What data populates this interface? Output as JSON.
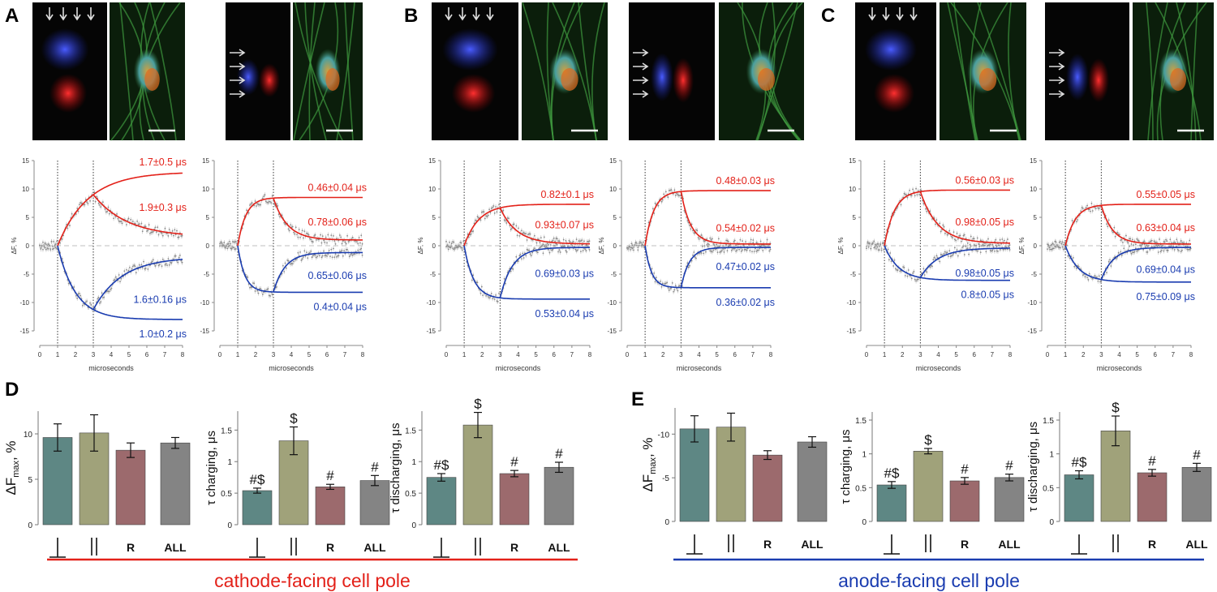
{
  "panels": {
    "A": {
      "letter": "A",
      "red_top": "1.7±0.5 μs",
      "red_bot": "1.9±0.3 μs",
      "blue_top": "1.6±0.16 μs",
      "blue_bot": "1.0±0.2 μs",
      "red2_top": "0.46±0.04 μs",
      "red2_bot": "0.78±0.06 μs",
      "blue2_top": "0.65±0.06 μs",
      "blue2_bot": "0.4±0.04 μs"
    },
    "B": {
      "letter": "B",
      "red_top": "0.82±0.1 μs",
      "red_bot": "0.93±0.07 μs",
      "blue_top": "0.69±0.03 μs",
      "blue_bot": "0.53±0.04 μs",
      "red2_top": "0.48±0.03 μs",
      "red2_bot": "0.54±0.02 μs",
      "blue2_top": "0.47±0.02 μs",
      "blue2_bot": "0.36±0.02 μs"
    },
    "C": {
      "letter": "C",
      "red_top": "0.56±0.03 μs",
      "red_bot": "0.98±0.05 μs",
      "blue_top": "0.98±0.05 μs",
      "blue_bot": "0.8±0.05 μs",
      "red2_top": "0.55±0.05 μs",
      "red2_bot": "0.63±0.04 μs",
      "blue2_top": "0.69±0.04 μs",
      "blue2_bot": "0.75±0.09 μs"
    }
  },
  "trace_axis": {
    "xlabel": "microseconds",
    "ylabel": "ΔF, %",
    "yticks": [
      "15",
      "10",
      "5",
      "0",
      "-5",
      "-10",
      "-15"
    ],
    "xticks": [
      "0",
      "1",
      "2",
      "3",
      "4",
      "5",
      "6",
      "7",
      "8"
    ]
  },
  "bar_labels": {
    "D": "D",
    "E": "E",
    "dfmax": "ΔF",
    "dfmax_sub": "max",
    "dfmax_unit": ", %",
    "tau_charging": "τ charging, μs",
    "tau_discharging": "τ discharging, μs",
    "cat_R": "R",
    "cat_ALL": "ALL",
    "cathode": "cathode-facing cell pole",
    "anode": "anode-facing cell pole"
  },
  "bar_ticks": {
    "D_dfmax": [
      "0",
      "5",
      "10"
    ],
    "E_dfmax": [
      "0",
      "-5",
      "-10"
    ],
    "tau": [
      "0",
      "0.5",
      "1",
      "1.5"
    ]
  },
  "colors": {
    "teal": "#5e8784",
    "olive": "#a0a27a",
    "mauve": "#9c6a6d",
    "gray": "#848484",
    "red": "#e32119",
    "blue": "#1a3cb0"
  },
  "chart_data": [
    {
      "type": "bar",
      "title": "D ΔFmax, %",
      "categories": [
        "⊥",
        "||",
        "R",
        "ALL"
      ],
      "values": [
        9.6,
        10.1,
        8.2,
        9.0
      ],
      "errors": [
        1.5,
        2.0,
        0.8,
        0.6
      ],
      "ylim": [
        0,
        12.5
      ],
      "marks": [
        "",
        "",
        "",
        ""
      ]
    },
    {
      "type": "bar",
      "title": "D τ charging, μs",
      "categories": [
        "⊥",
        "||",
        "R",
        "ALL"
      ],
      "values": [
        0.54,
        1.33,
        0.6,
        0.7
      ],
      "errors": [
        0.04,
        0.22,
        0.04,
        0.08
      ],
      "ylim": [
        0,
        1.8
      ],
      "marks": [
        "#$",
        "$",
        "#",
        "#"
      ]
    },
    {
      "type": "bar",
      "title": "D τ discharging, μs",
      "categories": [
        "⊥",
        "||",
        "R",
        "ALL"
      ],
      "values": [
        0.75,
        1.58,
        0.81,
        0.91
      ],
      "errors": [
        0.06,
        0.2,
        0.05,
        0.08
      ],
      "ylim": [
        0,
        1.8
      ],
      "marks": [
        "#$",
        "$",
        "#",
        "#"
      ]
    },
    {
      "type": "bar",
      "title": "E ΔFmax, %",
      "categories": [
        "⊥",
        "||",
        "R",
        "ALL"
      ],
      "values": [
        -10.6,
        -10.8,
        -7.6,
        -9.1
      ],
      "errors": [
        1.5,
        1.6,
        0.5,
        0.6
      ],
      "ylim": [
        0,
        -13
      ],
      "marks": [
        "",
        "",
        "",
        ""
      ]
    },
    {
      "type": "bar",
      "title": "E τ charging, μs",
      "categories": [
        "⊥",
        "||",
        "R",
        "ALL"
      ],
      "values": [
        0.54,
        1.04,
        0.6,
        0.65
      ],
      "errors": [
        0.05,
        0.04,
        0.05,
        0.05
      ],
      "ylim": [
        0,
        1.62
      ],
      "marks": [
        "#$",
        "$",
        "#",
        "#"
      ]
    },
    {
      "type": "bar",
      "title": "E τ discharging, μs",
      "categories": [
        "⊥",
        "||",
        "R",
        "ALL"
      ],
      "values": [
        0.69,
        1.34,
        0.72,
        0.8
      ],
      "errors": [
        0.06,
        0.22,
        0.05,
        0.06
      ],
      "ylim": [
        0,
        1.62
      ],
      "marks": [
        "#$",
        "$",
        "#",
        "#"
      ]
    }
  ]
}
